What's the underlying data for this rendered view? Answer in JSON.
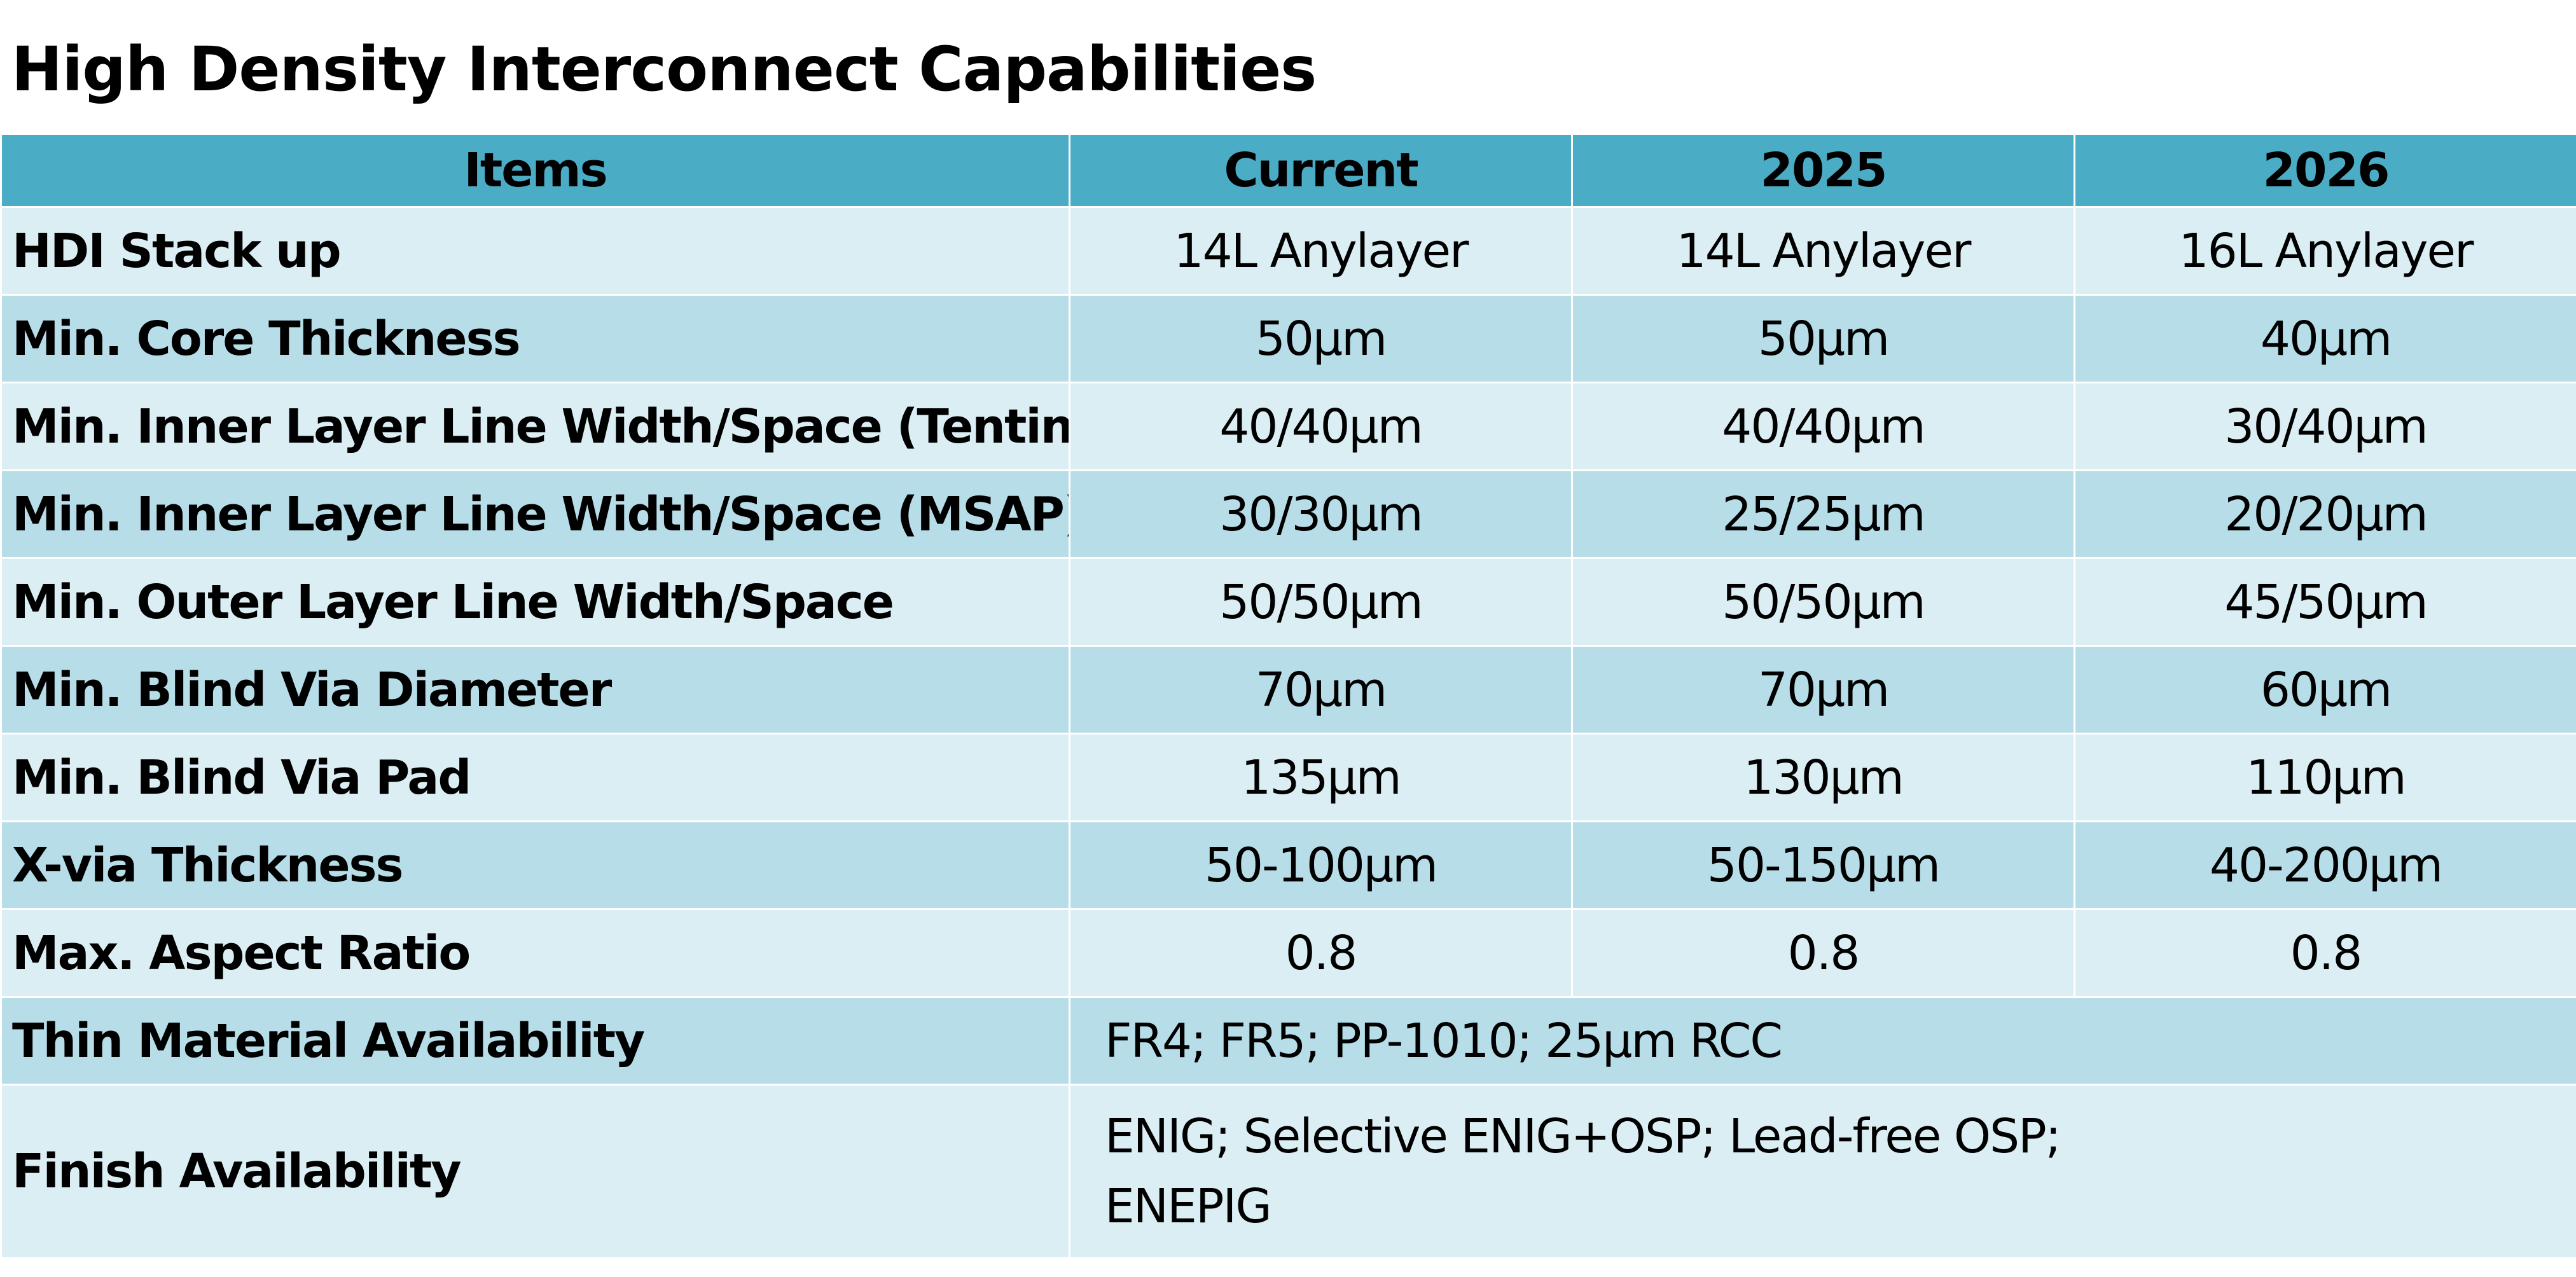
{
  "title": "High Density Interconnect Capabilities",
  "colors": {
    "header_bg": "#4bacc6",
    "row_light": "#dbeef3",
    "row_dark": "#b7dde8"
  },
  "table": {
    "headers": [
      "Items",
      "Current",
      "2025",
      "2026"
    ],
    "rows": [
      {
        "item": "HDI Stack up",
        "values": [
          "14L Anylayer",
          "14L Anylayer",
          "16L Anylayer"
        ]
      },
      {
        "item": "Min. Core Thickness",
        "values": [
          "50μm",
          "50μm",
          "40μm"
        ]
      },
      {
        "item": "Min. Inner Layer Line Width/Space (Tenting)",
        "values": [
          "40/40μm",
          "40/40μm",
          "30/40μm"
        ]
      },
      {
        "item": "Min. Inner Layer Line Width/Space (MSAP)",
        "values": [
          "30/30μm",
          "25/25μm",
          "20/20μm"
        ]
      },
      {
        "item": "Min. Outer Layer Line Width/Space",
        "values": [
          "50/50μm",
          "50/50μm",
          "45/50μm"
        ]
      },
      {
        "item": "Min. Blind Via Diameter",
        "values": [
          "70μm",
          "70μm",
          "60μm"
        ]
      },
      {
        "item": "Min. Blind Via Pad",
        "values": [
          "135μm",
          "130μm",
          "110μm"
        ]
      },
      {
        "item": "X-via Thickness",
        "values": [
          "50-100μm",
          "50-150μm",
          "40-200μm"
        ]
      },
      {
        "item": "Max. Aspect Ratio",
        "values": [
          "0.8",
          "0.8",
          "0.8"
        ]
      }
    ],
    "thin_material": {
      "item": "Thin Material Availability",
      "value": "FR4; FR5; PP-1010; 25μm RCC"
    },
    "finish": {
      "item": "Finish Availability",
      "value_lines": [
        "ENIG; Selective ENIG+OSP; Lead-free OSP;",
        "ENEPIG"
      ]
    }
  }
}
